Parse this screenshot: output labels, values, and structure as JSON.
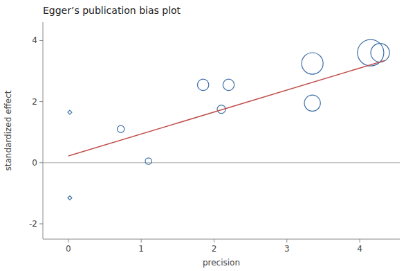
{
  "chart_data": {
    "type": "scatter",
    "title": "Egger’s publication bias plot",
    "x_label": "precision",
    "y_label": "standardized effect",
    "xlim": [
      -0.35,
      4.55
    ],
    "ylim": [
      -2.5,
      4.6
    ],
    "xticks": [
      0,
      1,
      2,
      3,
      4
    ],
    "yticks": [
      -2,
      0,
      2,
      4
    ],
    "grid": false,
    "hline": 0,
    "series": [
      {
        "type": "scatter",
        "marker": "diamond",
        "color": "#3b6ea5",
        "x": [
          0.02,
          0.02
        ],
        "values": [
          1.65,
          -1.15
        ],
        "sizes": [
          18,
          18
        ]
      },
      {
        "type": "scatter",
        "marker": "circle",
        "color": "#3b6ea5",
        "x": [
          0.72,
          1.1,
          1.85,
          2.2,
          2.1,
          3.35,
          3.35,
          4.15,
          4.28
        ],
        "values": [
          1.1,
          0.05,
          2.55,
          2.55,
          1.75,
          3.25,
          1.95,
          3.6,
          3.6
        ],
        "sizes": [
          55,
          45,
          140,
          140,
          75,
          500,
          280,
          750,
          380
        ]
      },
      {
        "type": "line",
        "color": "#c0504d",
        "x": [
          0.0,
          4.35
        ],
        "values": [
          0.22,
          3.35
        ]
      }
    ]
  }
}
